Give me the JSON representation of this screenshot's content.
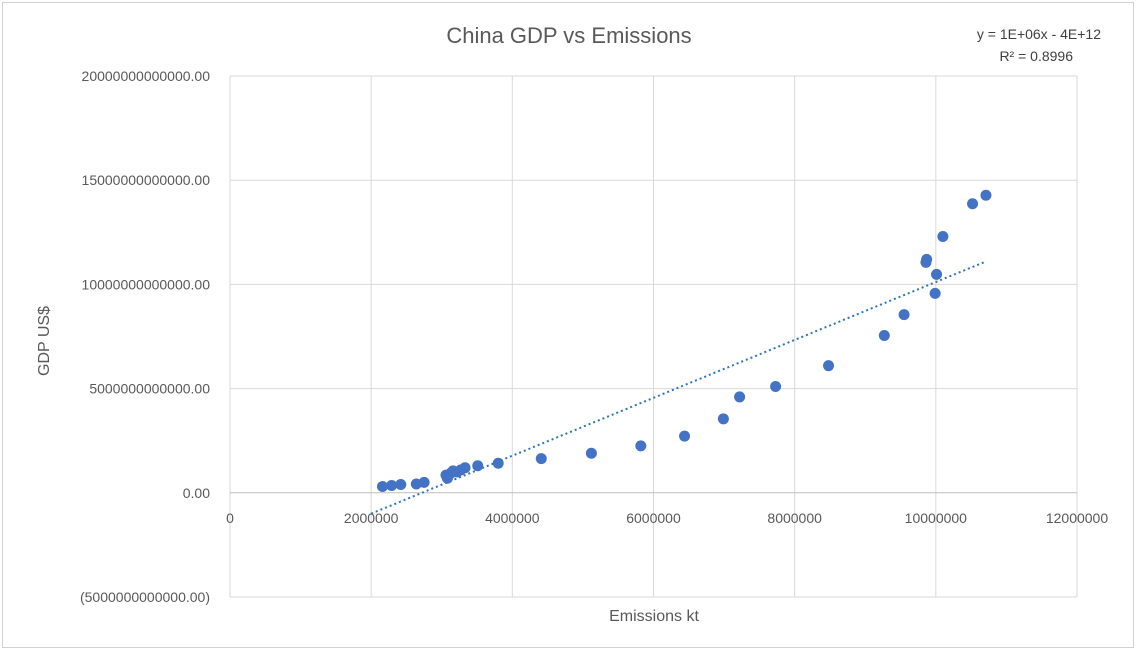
{
  "chart_data": {
    "type": "scatter",
    "title": "China GDP  vs Emissions",
    "xlabel": "Emissions kt",
    "ylabel": "GDP US$",
    "xlim": [
      0,
      12000000
    ],
    "ylim": [
      -5000000000000,
      20000000000000
    ],
    "x_ticks": [
      0,
      2000000,
      4000000,
      6000000,
      8000000,
      10000000,
      12000000
    ],
    "x_tick_labels": [
      "0",
      "2000000",
      "4000000",
      "6000000",
      "8000000",
      "10000000",
      "12000000"
    ],
    "y_ticks": [
      20000000000000,
      15000000000000,
      10000000000000,
      5000000000000,
      0,
      -5000000000000
    ],
    "y_tick_labels": [
      "20000000000000.00",
      "15000000000000.00",
      "10000000000000.00",
      "5000000000000.00",
      "0.00",
      "(5000000000000.00)"
    ],
    "negative_label_color": "#e00000",
    "grid": true,
    "legend": "none",
    "series": [
      {
        "color": "#4472c4",
        "x": [
          2160000,
          2290000,
          2420000,
          2640000,
          2750000,
          3060000,
          3080000,
          3130000,
          3160000,
          3220000,
          3270000,
          3330000,
          3510000,
          3800000,
          4410000,
          5120000,
          5820000,
          6440000,
          6990000,
          7220000,
          7730000,
          8480000,
          9270000,
          9550000,
          9860000,
          9870000,
          9990000,
          10010000,
          10100000,
          10520000,
          10710000
        ],
        "y": [
          300000000000,
          350000000000,
          400000000000,
          420000000000,
          500000000000,
          850000000000,
          700000000000,
          950000000000,
          1050000000000,
          1000000000000,
          1100000000000,
          1200000000000,
          1300000000000,
          1420000000000,
          1640000000000,
          1900000000000,
          2250000000000,
          2720000000000,
          3550000000000,
          4600000000000,
          5100000000000,
          6100000000000,
          7550000000000,
          8550000000000,
          11060000000000,
          11200000000000,
          9570000000000,
          10480000000000,
          12300000000000,
          13870000000000,
          14280000000000
        ]
      }
    ],
    "trendline": {
      "type": "linear",
      "color": "#2e75b6",
      "x_start": 2000000,
      "x_end": 10710000,
      "y_start": -1000000000000,
      "y_end": 11100000000000,
      "equation": "y = 1E+06x - 4E+12",
      "r_squared": "R² = 0.8996"
    }
  }
}
